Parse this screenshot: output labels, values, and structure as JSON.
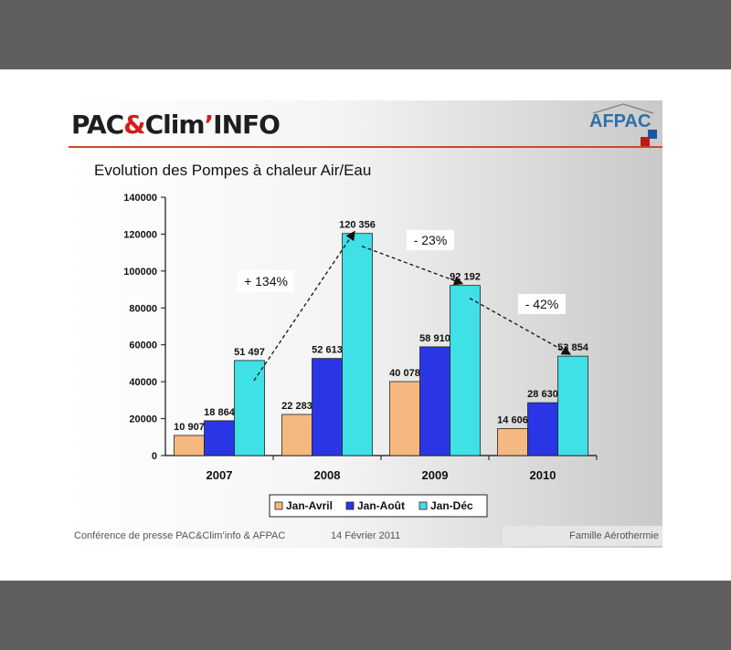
{
  "header": {
    "logo_left_part1": "PAC",
    "logo_left_amp": "&",
    "logo_left_part2": "Clim",
    "logo_left_apos": "’",
    "logo_left_part3": "INFO",
    "logo_right": "AFPAC"
  },
  "slide_title": "Evolution des Pompes à chaleur Air/Eau",
  "footer": {
    "left": "Conférence de presse PAC&Clim’info & AFPAC",
    "date": "14 Février 2011",
    "right": "Famille Aérothermie"
  },
  "colors": {
    "header_line": "#c84b2c",
    "series": [
      "#f5b87e",
      "#2a35e6",
      "#3fe0e6"
    ]
  },
  "chart_data": {
    "type": "bar",
    "title": "",
    "xlabel": "",
    "ylabel": "",
    "categories": [
      "2007",
      "2008",
      "2009",
      "2010"
    ],
    "series": [
      {
        "name": "Jan-Avril",
        "values": [
          10907,
          22283,
          40078,
          14606
        ],
        "labels": [
          "10 907",
          "22 283",
          "40 078",
          "14 606"
        ]
      },
      {
        "name": "Jan-Août",
        "values": [
          18864,
          52613,
          58910,
          28630
        ],
        "labels": [
          "18 864",
          "52 613",
          "58 910",
          "28 630"
        ]
      },
      {
        "name": "Jan-Déc",
        "values": [
          51497,
          120356,
          92192,
          53854
        ],
        "labels": [
          "51 497",
          "120 356",
          "92 192",
          "53 854"
        ]
      }
    ],
    "ylim": [
      0,
      140000
    ],
    "yticks": [
      0,
      20000,
      40000,
      60000,
      80000,
      100000,
      120000,
      140000
    ],
    "ytick_labels": [
      "0",
      "20000",
      "40000",
      "60000",
      "80000",
      "100000",
      "120000",
      "140000"
    ],
    "grid": false,
    "legend_position": "bottom",
    "annotations": [
      {
        "text": "+ 134%",
        "from_category": "2007",
        "to_category": "2008"
      },
      {
        "text": "- 23%",
        "from_category": "2008",
        "to_category": "2009"
      },
      {
        "text": "- 42%",
        "from_category": "2009",
        "to_category": "2010"
      }
    ]
  }
}
